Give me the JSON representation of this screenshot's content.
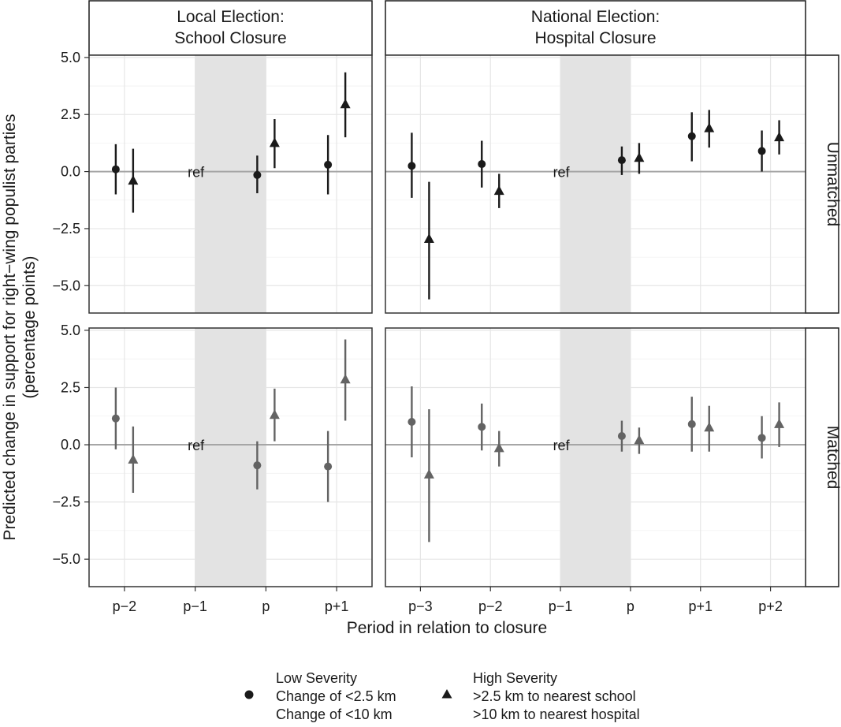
{
  "chart_data": {
    "type": "scatter",
    "chart_kind": "point-range faceted",
    "ylabel_line1": "Predicted change in support for right−wing populist parties",
    "ylabel_line2": "(percentage points)",
    "xlabel": "Period in relation to closure",
    "ylim": [
      -6.2,
      5.1
    ],
    "y_ticks": [
      5.0,
      2.5,
      0.0,
      -2.5,
      -5.0
    ],
    "y_tick_labels": [
      "5.0",
      "2.5",
      "0.0",
      "−2.5",
      "−5.0"
    ],
    "ref_label": "ref",
    "columns": [
      {
        "strip_line1": "Local Election:",
        "strip_line2": "School Closure",
        "periods": [
          "p−2",
          "p−1",
          "p",
          "p+1"
        ],
        "ref_period": "p−1"
      },
      {
        "strip_line1": "National Election:",
        "strip_line2": "Hospital Closure",
        "periods": [
          "p−3",
          "p−2",
          "p−1",
          "p",
          "p+1",
          "p+2"
        ],
        "ref_period": "p−1"
      }
    ],
    "rows": [
      {
        "strip": "Unmatched",
        "color": "#1a1a1a"
      },
      {
        "strip": "Matched",
        "color": "#636363"
      }
    ],
    "legend": {
      "low_title": "Low Severity",
      "low_line1": "Change of <2.5 km",
      "low_line2": "Change of <10 km",
      "high_title": "High Severity",
      "high_line1": ">2.5 km to nearest school",
      "high_line2": ">10 km to nearest hospital"
    },
    "series": [
      {
        "name": "Low Severity",
        "shape": "circle",
        "panels": [
          {
            "column": 0,
            "row": 0,
            "values": [
              {
                "period": "p−2",
                "y": 0.1,
                "lo": -1.0,
                "hi": 1.2
              },
              {
                "period": "p",
                "y": -0.15,
                "lo": -0.95,
                "hi": 0.7
              },
              {
                "period": "p+1",
                "y": 0.3,
                "lo": -1.0,
                "hi": 1.6
              }
            ]
          },
          {
            "column": 1,
            "row": 0,
            "values": [
              {
                "period": "p−3",
                "y": 0.25,
                "lo": -1.15,
                "hi": 1.7
              },
              {
                "period": "p−2",
                "y": 0.33,
                "lo": -0.7,
                "hi": 1.35
              },
              {
                "period": "p",
                "y": 0.5,
                "lo": -0.15,
                "hi": 1.1
              },
              {
                "period": "p+1",
                "y": 1.55,
                "lo": 0.45,
                "hi": 2.6
              },
              {
                "period": "p+2",
                "y": 0.9,
                "lo": 0.0,
                "hi": 1.8
              }
            ]
          },
          {
            "column": 0,
            "row": 1,
            "values": [
              {
                "period": "p−2",
                "y": 1.15,
                "lo": -0.2,
                "hi": 2.5
              },
              {
                "period": "p",
                "y": -0.9,
                "lo": -1.95,
                "hi": 0.15
              },
              {
                "period": "p+1",
                "y": -0.95,
                "lo": -2.5,
                "hi": 0.6
              }
            ]
          },
          {
            "column": 1,
            "row": 1,
            "values": [
              {
                "period": "p−3",
                "y": 1.0,
                "lo": -0.55,
                "hi": 2.55
              },
              {
                "period": "p−2",
                "y": 0.78,
                "lo": -0.25,
                "hi": 1.8
              },
              {
                "period": "p",
                "y": 0.38,
                "lo": -0.3,
                "hi": 1.05
              },
              {
                "period": "p+1",
                "y": 0.9,
                "lo": -0.3,
                "hi": 2.1
              },
              {
                "period": "p+2",
                "y": 0.3,
                "lo": -0.6,
                "hi": 1.25
              }
            ]
          }
        ]
      },
      {
        "name": "High Severity",
        "shape": "triangle",
        "panels": [
          {
            "column": 0,
            "row": 0,
            "values": [
              {
                "period": "p−2",
                "y": -0.4,
                "lo": -1.8,
                "hi": 1.0
              },
              {
                "period": "p",
                "y": 1.25,
                "lo": 0.15,
                "hi": 2.3
              },
              {
                "period": "p+1",
                "y": 2.95,
                "lo": 1.5,
                "hi": 4.35
              }
            ]
          },
          {
            "column": 1,
            "row": 0,
            "values": [
              {
                "period": "p−3",
                "y": -2.95,
                "lo": -5.6,
                "hi": -0.45
              },
              {
                "period": "p−2",
                "y": -0.85,
                "lo": -1.6,
                "hi": -0.1
              },
              {
                "period": "p",
                "y": 0.6,
                "lo": -0.1,
                "hi": 1.25
              },
              {
                "period": "p+1",
                "y": 1.9,
                "lo": 1.05,
                "hi": 2.7
              },
              {
                "period": "p+2",
                "y": 1.5,
                "lo": 0.75,
                "hi": 2.25
              }
            ]
          },
          {
            "column": 0,
            "row": 1,
            "values": [
              {
                "period": "p−2",
                "y": -0.65,
                "lo": -2.1,
                "hi": 0.8
              },
              {
                "period": "p",
                "y": 1.3,
                "lo": 0.15,
                "hi": 2.45
              },
              {
                "period": "p+1",
                "y": 2.85,
                "lo": 1.05,
                "hi": 4.6
              }
            ]
          },
          {
            "column": 1,
            "row": 1,
            "values": [
              {
                "period": "p−3",
                "y": -1.3,
                "lo": -4.25,
                "hi": 1.55
              },
              {
                "period": "p−2",
                "y": -0.15,
                "lo": -0.95,
                "hi": 0.6
              },
              {
                "period": "p",
                "y": 0.2,
                "lo": -0.4,
                "hi": 0.75
              },
              {
                "period": "p+1",
                "y": 0.75,
                "lo": -0.3,
                "hi": 1.7
              },
              {
                "period": "p+2",
                "y": 0.9,
                "lo": -0.1,
                "hi": 1.85
              }
            ]
          }
        ]
      }
    ]
  }
}
